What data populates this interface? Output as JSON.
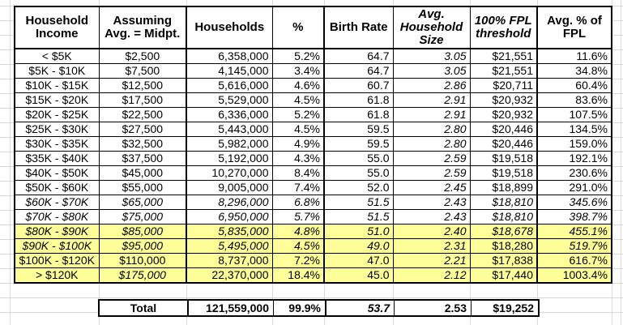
{
  "colors": {
    "highlight": "#FFFF99",
    "table_border": "#000000",
    "gridline": "#D9D9D9",
    "background": "#FFFFFF"
  },
  "table": {
    "headers": [
      {
        "label": "Household Income",
        "italic": false
      },
      {
        "label": "Assuming Avg. = Midpt.",
        "italic": false
      },
      {
        "label": "Households",
        "italic": false
      },
      {
        "label": "%",
        "italic": false
      },
      {
        "label": "Birth Rate",
        "italic": false
      },
      {
        "label": "Avg. Household Size",
        "italic": true
      },
      {
        "label": "100% FPL threshold",
        "italic": true
      },
      {
        "label": "Avg. % of FPL",
        "italic": false
      }
    ],
    "rows": [
      {
        "cells": [
          "< $5K",
          "$2,500",
          "6,358,000",
          "5.2%",
          "64.7",
          "3.05",
          "$21,551",
          "11.6%"
        ],
        "highlight": false,
        "italics": [
          false,
          false,
          false,
          false,
          false,
          true,
          false,
          false
        ]
      },
      {
        "cells": [
          "$5K - $10K",
          "$7,500",
          "4,145,000",
          "3.4%",
          "64.7",
          "3.05",
          "$21,551",
          "34.8%"
        ],
        "highlight": false,
        "italics": [
          false,
          false,
          false,
          false,
          false,
          true,
          false,
          false
        ]
      },
      {
        "cells": [
          "$10K - $15K",
          "$12,500",
          "5,616,000",
          "4.6%",
          "60.7",
          "2.86",
          "$20,711",
          "60.4%"
        ],
        "highlight": false,
        "italics": [
          false,
          false,
          false,
          false,
          false,
          true,
          false,
          false
        ]
      },
      {
        "cells": [
          "$15K - $20K",
          "$17,500",
          "5,529,000",
          "4.5%",
          "61.8",
          "2.91",
          "$20,932",
          "83.6%"
        ],
        "highlight": false,
        "italics": [
          false,
          false,
          false,
          false,
          false,
          true,
          false,
          false
        ]
      },
      {
        "cells": [
          "$20K - $25K",
          "$22,500",
          "6,336,000",
          "5.2%",
          "61.8",
          "2.91",
          "$20,932",
          "107.5%"
        ],
        "highlight": false,
        "italics": [
          false,
          false,
          false,
          false,
          false,
          true,
          false,
          false
        ]
      },
      {
        "cells": [
          "$25K - $30K",
          "$27,500",
          "5,443,000",
          "4.5%",
          "59.5",
          "2.80",
          "$20,446",
          "134.5%"
        ],
        "highlight": false,
        "italics": [
          false,
          false,
          false,
          false,
          false,
          true,
          false,
          false
        ]
      },
      {
        "cells": [
          "$30K - $35K",
          "$32,500",
          "5,982,000",
          "4.9%",
          "59.5",
          "2.80",
          "$20,446",
          "159.0%"
        ],
        "highlight": false,
        "italics": [
          false,
          false,
          false,
          false,
          false,
          true,
          false,
          false
        ]
      },
      {
        "cells": [
          "$35K - $40K",
          "$37,500",
          "5,192,000",
          "4.3%",
          "55.0",
          "2.59",
          "$19,518",
          "192.1%"
        ],
        "highlight": false,
        "italics": [
          false,
          false,
          false,
          false,
          false,
          true,
          false,
          false
        ]
      },
      {
        "cells": [
          "$40K - $50K",
          "$45,000",
          "10,270,000",
          "8.4%",
          "55.0",
          "2.59",
          "$19,518",
          "230.6%"
        ],
        "highlight": false,
        "italics": [
          false,
          false,
          false,
          false,
          false,
          true,
          false,
          false
        ]
      },
      {
        "cells": [
          "$50K - $60K",
          "$55,000",
          "9,005,000",
          "7.4%",
          "52.0",
          "2.45",
          "$18,899",
          "291.0%"
        ],
        "highlight": false,
        "italics": [
          false,
          false,
          false,
          false,
          false,
          true,
          false,
          false
        ]
      },
      {
        "cells": [
          "$60K - $70K",
          "$65,000",
          "8,296,000",
          "6.8%",
          "51.5",
          "2.43",
          "$18,810",
          "345.6%"
        ],
        "highlight": false,
        "italics": [
          true,
          true,
          true,
          true,
          true,
          true,
          true,
          true
        ]
      },
      {
        "cells": [
          "$70K - $80K",
          "$75,000",
          "6,950,000",
          "5.7%",
          "51.5",
          "2.43",
          "$18,810",
          "398.7%"
        ],
        "highlight": false,
        "italics": [
          true,
          true,
          true,
          true,
          true,
          true,
          true,
          true
        ]
      },
      {
        "cells": [
          "$80K - $90K",
          "$85,000",
          "5,835,000",
          "4.8%",
          "51.0",
          "2.40",
          "$18,678",
          "455.1%"
        ],
        "highlight": true,
        "italics": [
          true,
          true,
          true,
          true,
          true,
          true,
          true,
          true
        ]
      },
      {
        "cells": [
          "$90K - $100K",
          "$95,000",
          "5,495,000",
          "4.5%",
          "49.0",
          "2.31",
          "$18,280",
          "519.7%"
        ],
        "highlight": true,
        "italics": [
          true,
          true,
          true,
          true,
          true,
          true,
          false,
          true
        ]
      },
      {
        "cells": [
          "$100K - $120K",
          "$110,000",
          "8,737,000",
          "7.2%",
          "47.0",
          "2.21",
          "$17,838",
          "616.7%"
        ],
        "highlight": true,
        "italics": [
          false,
          false,
          false,
          false,
          false,
          true,
          false,
          false
        ]
      },
      {
        "cells": [
          "> $120K",
          "$175,000",
          "22,370,000",
          "18.4%",
          "45.0",
          "2.12",
          "$17,440",
          "1003.4%"
        ],
        "highlight": true,
        "italics": [
          false,
          true,
          false,
          false,
          false,
          true,
          false,
          false
        ]
      }
    ],
    "total": {
      "label": "Total",
      "values": [
        "121,559,000",
        "99.9%",
        "53.7",
        "2.53",
        "$19,252"
      ],
      "italics": [
        false,
        false,
        true,
        false,
        false
      ]
    }
  }
}
